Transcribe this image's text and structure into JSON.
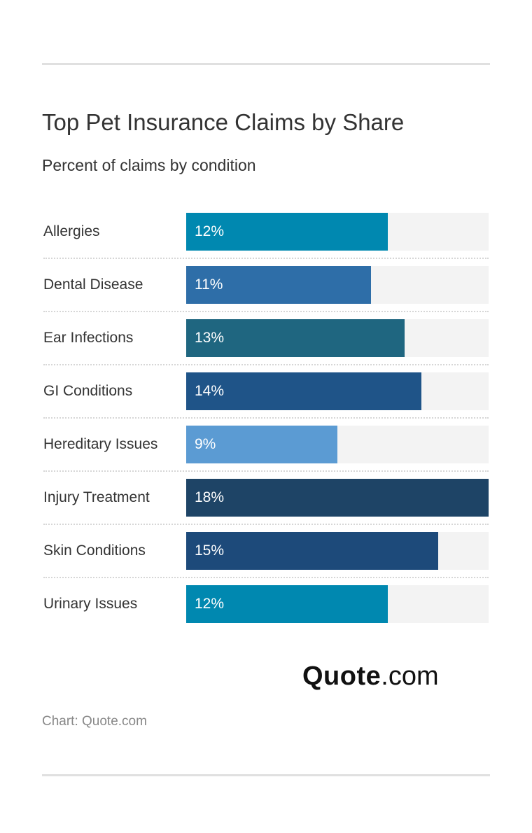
{
  "chart_data": {
    "type": "bar",
    "orientation": "horizontal",
    "title": "Top Pet Insurance Claims by Share",
    "subtitle": "Percent of claims by condition",
    "categories": [
      "Allergies",
      "Dental Disease",
      "Ear Infections",
      "GI Conditions",
      "Hereditary Issues",
      "Injury Treatment",
      "Skin Conditions",
      "Urinary Issues"
    ],
    "values": [
      12,
      11,
      13,
      14,
      9,
      18,
      15,
      12
    ],
    "value_labels": [
      "12%",
      "11%",
      "13%",
      "14%",
      "9%",
      "18%",
      "15%",
      "12%"
    ],
    "colors": [
      "#0088b0",
      "#2e6ea8",
      "#1f6680",
      "#1f5488",
      "#5b9bd3",
      "#1e4466",
      "#1d4a7a",
      "#0088b0"
    ],
    "xlim": [
      0,
      18
    ],
    "track_color": "#f3f3f3",
    "grid": false
  },
  "logo": {
    "bold": "Quote",
    "light": ".com"
  },
  "source": "Chart: Quote.com"
}
